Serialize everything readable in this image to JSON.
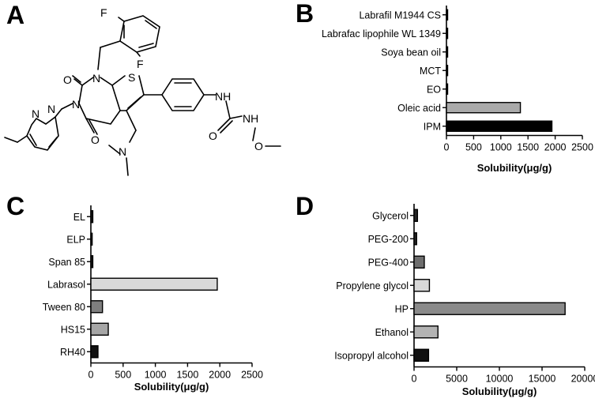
{
  "panels": {
    "A": {
      "letter": "A"
    },
    "B": {
      "letter": "B"
    },
    "C": {
      "letter": "C"
    },
    "D": {
      "letter": "D"
    }
  },
  "molecule": {
    "atom_labels": [
      "F",
      "F",
      "O",
      "N",
      "N",
      "N",
      "O",
      "S",
      "N",
      "N",
      "NH",
      "O",
      "NH",
      "O"
    ]
  },
  "chart_data": [
    {
      "panel": "B",
      "type": "bar",
      "orientation": "horizontal",
      "categories": [
        "Labrafil M1944 CS",
        "Labrafac lipophile WL 1349",
        "Soya bean oil",
        "MCT",
        "EO",
        "Oleic acid",
        "IPM"
      ],
      "values": [
        5,
        5,
        5,
        5,
        20,
        1360,
        1940
      ],
      "colors": [
        "#000000",
        "#000000",
        "#000000",
        "#000000",
        "#000000",
        "#aaaaaa",
        "#000000"
      ],
      "xlabel": "Solubility(μg/g)",
      "xlim": [
        0,
        2500
      ],
      "xticks": [
        0,
        500,
        1000,
        1500,
        2000,
        2500
      ]
    },
    {
      "panel": "C",
      "type": "bar",
      "orientation": "horizontal",
      "categories": [
        "EL",
        "ELP",
        "Span 85",
        "Labrasol",
        "Tween 80",
        "HS15",
        "RH40"
      ],
      "values": [
        30,
        20,
        30,
        1960,
        180,
        270,
        110
      ],
      "colors": [
        "#1a1a1a",
        "#1a1a1a",
        "#1a1a1a",
        "#d9d9d9",
        "#7f7f7f",
        "#a6a6a6",
        "#111111"
      ],
      "xlabel": "Solubility(μg/g)",
      "xlim": [
        0,
        2500
      ],
      "xticks": [
        0,
        500,
        1000,
        1500,
        2000,
        2500
      ]
    },
    {
      "panel": "D",
      "type": "bar",
      "orientation": "horizontal",
      "categories": [
        "Glycerol",
        "PEG-200",
        "PEG-400",
        "Propylene glycol",
        "HP",
        "Ethanol",
        "Isopropyl alcohol"
      ],
      "values": [
        400,
        300,
        1200,
        1800,
        17700,
        2800,
        1700
      ],
      "colors": [
        "#262626",
        "#262626",
        "#6e6e6e",
        "#d9d9d9",
        "#8a8a8a",
        "#b3b3b3",
        "#111111"
      ],
      "xlabel": "Solubility(μg/g)",
      "xlim": [
        0,
        20000
      ],
      "xticks": [
        0,
        5000,
        10000,
        15000,
        20000
      ]
    }
  ]
}
